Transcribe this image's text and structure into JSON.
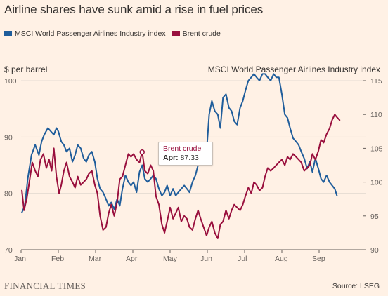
{
  "title": "Airline shares have sunk amid a rise in fuel prices",
  "legend": [
    {
      "label": "MSCI World Passenger Airlines Industry index",
      "color": "#1f5d9b"
    },
    {
      "label": "Brent crude",
      "color": "#990f3d"
    }
  ],
  "left_axis_label": "$ per barrel",
  "right_axis_label": "MSCI World Passenger Airlines Industry index",
  "tooltip": {
    "series": "Brent crude",
    "month": "Apr",
    "value": "87.33"
  },
  "footer": {
    "brand": "FINANCIAL TIMES",
    "source": "Source: LSEG"
  },
  "colors": {
    "background": "#fff1e5",
    "grid": "#e5dbd2",
    "axis": "#66605c",
    "msci": "#1f5d9b",
    "brent": "#990f3d"
  },
  "chart_data": {
    "type": "line",
    "x_unit": "months since 1 Jan (2024)",
    "x_tick_labels": [
      "Jan",
      "Feb",
      "Mar",
      "Apr",
      "May",
      "Jun",
      "Jul",
      "Aug",
      "Sep"
    ],
    "x_ticks": [
      0,
      1,
      2,
      3,
      4,
      5,
      6,
      7,
      8
    ],
    "xlim": [
      0,
      8.6
    ],
    "y_left": {
      "label": "$ per barrel",
      "range": [
        70,
        100
      ],
      "ticks": [
        70,
        80,
        90,
        100
      ]
    },
    "y_right": {
      "label": "MSCI World Passenger Airlines Industry index",
      "range": [
        90,
        115
      ],
      "ticks": [
        90,
        95,
        100,
        105,
        110,
        115
      ]
    },
    "grid": true,
    "legend_position": "top-left",
    "series": [
      {
        "name": "MSCI World Passenger Airlines Industry index",
        "axis": "right",
        "color": "#1f5d9b",
        "x": [
          0.02,
          0.1,
          0.18,
          0.28,
          0.38,
          0.48,
          0.55,
          0.62,
          0.72,
          0.8,
          0.88,
          0.95,
          1.0,
          1.08,
          1.15,
          1.22,
          1.3,
          1.38,
          1.45,
          1.52,
          1.6,
          1.68,
          1.75,
          1.82,
          1.9,
          1.98,
          2.05,
          2.12,
          2.2,
          2.28,
          2.35,
          2.42,
          2.5,
          2.58,
          2.65,
          2.72,
          2.8,
          2.88,
          2.95,
          3.02,
          3.1,
          3.18,
          3.25,
          3.32,
          3.4,
          3.48,
          3.55,
          3.62,
          3.7,
          3.78,
          3.85,
          3.92,
          4.0,
          4.08,
          4.15,
          4.22,
          4.3,
          4.38,
          4.45,
          4.52,
          4.6,
          4.68,
          4.75,
          4.82,
          4.9,
          4.98,
          5.05,
          5.12,
          5.2,
          5.28,
          5.35,
          5.42,
          5.5,
          5.58,
          5.65,
          5.72,
          5.8,
          5.88,
          5.95,
          6.02,
          6.1,
          6.18,
          6.25,
          6.32,
          6.4,
          6.48,
          6.55,
          6.62,
          6.7,
          6.78,
          6.85,
          6.92,
          7.0,
          7.08,
          7.15,
          7.22,
          7.3,
          7.38,
          7.45,
          7.52,
          7.6,
          7.68,
          7.75,
          7.82,
          7.9,
          7.98,
          8.05,
          8.12,
          8.2,
          8.28,
          8.35,
          8.42,
          8.48
        ],
        "y": [
          95.5,
          96.5,
          100.5,
          104.0,
          105.5,
          104.0,
          106.0,
          107.0,
          108.0,
          107.5,
          107.0,
          108.0,
          107.5,
          106.0,
          105.5,
          104.5,
          105.0,
          103.0,
          104.0,
          105.5,
          105.0,
          103.5,
          103.0,
          104.0,
          104.5,
          103.0,
          100.5,
          99.0,
          98.5,
          97.5,
          96.5,
          97.0,
          96.0,
          97.5,
          96.5,
          99.0,
          101.0,
          100.0,
          99.5,
          100.0,
          98.5,
          101.5,
          102.5,
          100.5,
          100.0,
          100.5,
          101.0,
          100.5,
          99.0,
          98.0,
          98.5,
          99.5,
          98.0,
          99.0,
          98.0,
          98.5,
          99.0,
          99.5,
          99.0,
          98.5,
          100.0,
          101.0,
          102.5,
          104.0,
          103.0,
          104.5,
          110.0,
          112.0,
          110.5,
          110.0,
          108.0,
          112.5,
          113.0,
          111.0,
          110.5,
          109.0,
          108.5,
          111.0,
          112.0,
          113.5,
          115.0,
          115.5,
          116.0,
          115.5,
          115.0,
          116.0,
          116.0,
          115.5,
          115.0,
          116.0,
          115.5,
          115.5,
          113.0,
          110.0,
          109.5,
          108.0,
          106.5,
          106.0,
          105.5,
          104.5,
          103.5,
          102.0,
          103.0,
          101.5,
          103.5,
          102.0,
          100.5,
          100.0,
          101.0,
          100.0,
          99.5,
          99.0,
          98.0
        ]
      },
      {
        "name": "Brent crude",
        "axis": "left",
        "color": "#990f3d",
        "x": [
          0.02,
          0.08,
          0.15,
          0.22,
          0.3,
          0.38,
          0.45,
          0.52,
          0.6,
          0.68,
          0.75,
          0.82,
          0.88,
          0.95,
          1.02,
          1.08,
          1.15,
          1.22,
          1.3,
          1.38,
          1.45,
          1.52,
          1.6,
          1.68,
          1.75,
          1.82,
          1.9,
          1.98,
          2.05,
          2.12,
          2.2,
          2.28,
          2.35,
          2.42,
          2.5,
          2.58,
          2.65,
          2.72,
          2.8,
          2.88,
          2.95,
          3.02,
          3.1,
          3.18,
          3.25,
          3.32,
          3.4,
          3.48,
          3.55,
          3.62,
          3.7,
          3.78,
          3.85,
          3.92,
          4.0,
          4.08,
          4.15,
          4.22,
          4.3,
          4.38,
          4.45,
          4.52,
          4.6,
          4.68,
          4.75,
          4.82,
          4.9,
          4.98,
          5.05,
          5.12,
          5.2,
          5.28,
          5.35,
          5.42,
          5.5,
          5.58,
          5.65,
          5.72,
          5.8,
          5.88,
          5.95,
          6.02,
          6.1,
          6.18,
          6.25,
          6.32,
          6.4,
          6.48,
          6.55,
          6.62,
          6.7,
          6.78,
          6.85,
          6.92,
          7.0,
          7.08,
          7.15,
          7.22,
          7.3,
          7.38,
          7.45,
          7.52,
          7.6,
          7.68,
          7.75,
          7.82,
          7.9,
          7.98,
          8.05,
          8.12,
          8.2,
          8.28,
          8.35,
          8.42,
          8.48,
          8.55
        ],
        "y": [
          80.5,
          77.0,
          79.0,
          82.0,
          85.5,
          84.0,
          83.0,
          86.0,
          87.0,
          84.5,
          86.0,
          84.0,
          88.0,
          83.0,
          80.0,
          81.5,
          84.0,
          85.5,
          83.0,
          82.0,
          81.0,
          83.0,
          81.5,
          82.0,
          82.5,
          83.5,
          84.0,
          81.5,
          80.0,
          76.0,
          73.5,
          74.0,
          76.5,
          78.0,
          76.0,
          78.5,
          82.5,
          83.0,
          85.0,
          87.0,
          86.5,
          87.0,
          86.0,
          85.5,
          87.33,
          84.0,
          83.5,
          85.0,
          84.0,
          79.5,
          78.0,
          74.5,
          73.0,
          75.0,
          77.5,
          75.5,
          76.5,
          77.5,
          75.0,
          76.0,
          75.5,
          74.0,
          73.5,
          75.5,
          77.0,
          75.5,
          74.0,
          72.5,
          74.0,
          75.0,
          73.0,
          72.0,
          74.5,
          75.0,
          77.0,
          75.5,
          77.0,
          78.0,
          77.5,
          77.0,
          78.0,
          79.5,
          81.0,
          80.0,
          82.0,
          81.5,
          80.5,
          81.0,
          83.0,
          84.5,
          84.0,
          84.5,
          85.0,
          85.5,
          86.0,
          85.0,
          86.5,
          86.0,
          87.0,
          86.5,
          86.0,
          85.5,
          84.0,
          84.5,
          85.0,
          87.0,
          86.0,
          87.5,
          89.5,
          89.0,
          90.5,
          91.5,
          93.0,
          94.0,
          93.5,
          93.0
        ]
      }
    ]
  }
}
